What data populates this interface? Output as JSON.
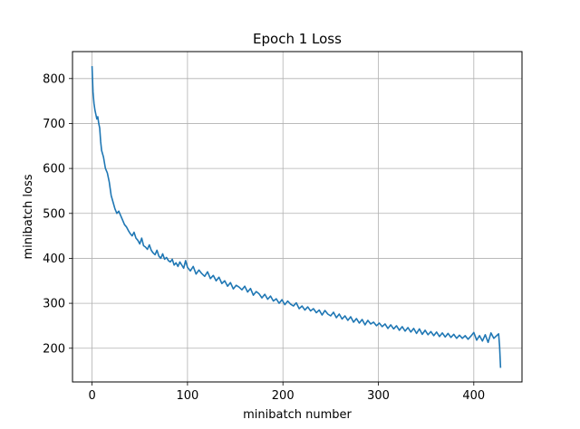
{
  "chart_data": {
    "type": "line",
    "title": "Epoch 1 Loss",
    "xlabel": "minibatch number",
    "ylabel": "minibatch loss",
    "xlim": [
      -20.5,
      450.5
    ],
    "ylim": [
      125,
      860
    ],
    "grid": true,
    "xticks": [
      0,
      100,
      200,
      300,
      400
    ],
    "yticks": [
      200,
      300,
      400,
      500,
      600,
      700,
      800
    ],
    "series": [
      {
        "name": "loss",
        "color": "#1f77b4",
        "x": [
          0,
          1,
          2,
          3,
          4,
          5,
          6,
          7,
          8,
          9,
          10,
          12,
          14,
          16,
          18,
          20,
          22,
          24,
          26,
          28,
          30,
          32,
          34,
          36,
          38,
          40,
          42,
          44,
          46,
          48,
          50,
          52,
          54,
          56,
          58,
          60,
          62,
          64,
          66,
          68,
          70,
          72,
          74,
          76,
          78,
          80,
          82,
          84,
          86,
          88,
          90,
          92,
          94,
          96,
          98,
          100,
          103,
          106,
          109,
          112,
          115,
          118,
          121,
          124,
          127,
          130,
          133,
          136,
          139,
          142,
          145,
          148,
          151,
          154,
          157,
          160,
          163,
          166,
          169,
          172,
          175,
          178,
          181,
          184,
          187,
          190,
          193,
          196,
          199,
          202,
          205,
          208,
          211,
          214,
          217,
          220,
          223,
          226,
          229,
          232,
          235,
          238,
          241,
          244,
          247,
          250,
          253,
          256,
          259,
          262,
          265,
          268,
          271,
          274,
          277,
          280,
          283,
          286,
          289,
          292,
          295,
          298,
          301,
          304,
          307,
          310,
          313,
          316,
          319,
          322,
          325,
          328,
          331,
          334,
          337,
          340,
          343,
          346,
          349,
          352,
          355,
          358,
          361,
          364,
          367,
          370,
          373,
          376,
          379,
          382,
          385,
          388,
          391,
          394,
          397,
          400,
          403,
          406,
          409,
          412,
          415,
          418,
          421,
          424,
          426,
          427,
          428
        ],
        "y": [
          826,
          770,
          745,
          730,
          720,
          710,
          715,
          700,
          690,
          660,
          640,
          625,
          600,
          590,
          570,
          540,
          525,
          510,
          500,
          505,
          495,
          485,
          475,
          470,
          462,
          455,
          450,
          458,
          445,
          440,
          432,
          445,
          428,
          425,
          420,
          430,
          418,
          412,
          408,
          418,
          405,
          400,
          410,
          398,
          402,
          395,
          392,
          398,
          385,
          390,
          382,
          392,
          385,
          378,
          395,
          380,
          372,
          382,
          365,
          374,
          366,
          360,
          370,
          355,
          362,
          350,
          358,
          344,
          350,
          338,
          346,
          332,
          340,
          336,
          330,
          338,
          325,
          333,
          318,
          326,
          321,
          312,
          320,
          309,
          316,
          305,
          310,
          300,
          308,
          297,
          305,
          298,
          294,
          301,
          288,
          294,
          285,
          292,
          283,
          288,
          279,
          285,
          274,
          284,
          276,
          272,
          280,
          268,
          276,
          265,
          272,
          262,
          270,
          258,
          266,
          256,
          264,
          252,
          262,
          254,
          258,
          250,
          256,
          248,
          254,
          244,
          252,
          243,
          250,
          240,
          248,
          238,
          246,
          236,
          244,
          233,
          243,
          231,
          240,
          230,
          237,
          228,
          236,
          226,
          234,
          225,
          233,
          224,
          231,
          222,
          229,
          222,
          228,
          220,
          227,
          235,
          218,
          228,
          216,
          230,
          213,
          234,
          222,
          228,
          232,
          205,
          158
        ]
      }
    ]
  }
}
